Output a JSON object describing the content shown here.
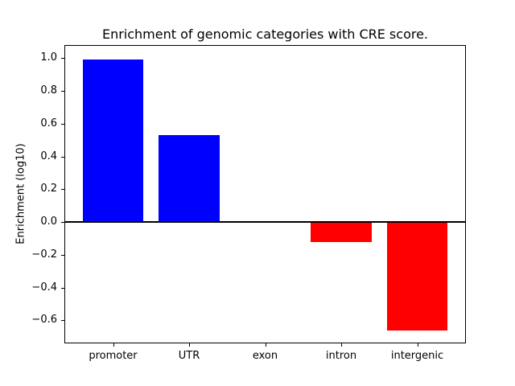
{
  "figure": {
    "background_color": "#ffffff",
    "frame_color": "#000000"
  },
  "chart_data": {
    "type": "bar",
    "title": "Enrichment of genomic categories with CRE score.",
    "xlabel": "",
    "ylabel": "Enrichment (log10)",
    "categories": [
      "promoter",
      "UTR",
      "exon",
      "intron",
      "intergenic"
    ],
    "values": [
      0.99,
      0.53,
      0.0,
      -0.12,
      -0.66
    ],
    "bar_colors": [
      "#0000ff",
      "#0000ff",
      "#0000ff",
      "#ff0000",
      "#ff0000"
    ],
    "positive_color": "#0000ff",
    "negative_color": "#ff0000",
    "yticks": [
      1.0,
      0.8,
      0.6,
      0.4,
      0.2,
      0.0,
      -0.2,
      -0.4,
      -0.6
    ],
    "ytick_labels": [
      "1.0",
      "0.8",
      "0.6",
      "0.4",
      "0.2",
      "0.0",
      "−0.2",
      "−0.4",
      "−0.6"
    ],
    "xtick_labels": [
      "promoter",
      "UTR",
      "exon",
      "intron",
      "intergenic"
    ],
    "ylim": [
      -0.74,
      1.08
    ],
    "xlim": [
      -0.64,
      4.64
    ],
    "bar_rel_width": 0.8,
    "zero_line": true,
    "zero_line_color": "#000000",
    "grid": false,
    "legend": null
  }
}
